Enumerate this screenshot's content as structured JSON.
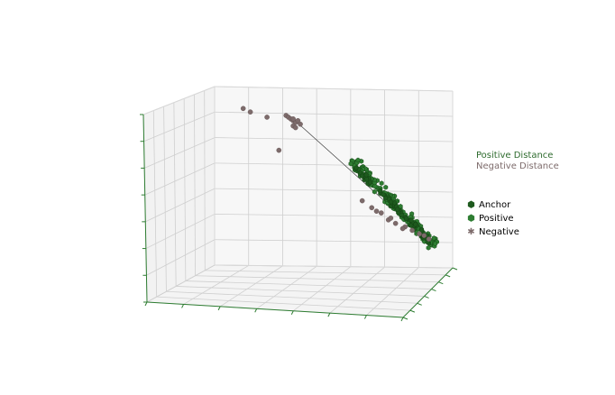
{
  "chart_data": {
    "type": "scatter",
    "projection": "3d",
    "grid": true,
    "colors": {
      "anchor": "#1e5a1e",
      "positive": "#2e7d32",
      "negative": "#7d6b6b",
      "positive_distance_text": "#2e6b2e",
      "negative_distance_text": "#7d6b6b",
      "pane_left": "#f2f2f2",
      "pane_back": "#f7f7f7",
      "pane_floor": "#f4f4f4",
      "grid": "#cfcfcf",
      "axis_ticks": "#2e7d32"
    },
    "distance_legend": {
      "placement": "right",
      "positive_label": "Positive Distance",
      "negative_label": "Negative Distance"
    },
    "legend": {
      "placement": "right",
      "entries": [
        {
          "label": "Anchor",
          "marker": "hexagon",
          "color_key": "anchor"
        },
        {
          "label": "Positive",
          "marker": "hexagon",
          "color_key": "positive"
        },
        {
          "label": "Negative",
          "marker": "star",
          "color_key": "negative"
        }
      ]
    },
    "series": [
      {
        "name": "Negative",
        "marker": "star",
        "points": [
          [
            0.12,
            0.9
          ],
          [
            0.15,
            0.88
          ],
          [
            0.22,
            0.85
          ],
          [
            0.3,
            0.86
          ],
          [
            0.31,
            0.85
          ],
          [
            0.32,
            0.84
          ],
          [
            0.33,
            0.83
          ],
          [
            0.34,
            0.82
          ],
          [
            0.33,
            0.8
          ],
          [
            0.34,
            0.79
          ],
          [
            0.36,
            0.81
          ],
          [
            0.33,
            0.84
          ],
          [
            0.35,
            0.83
          ],
          [
            0.27,
            0.66
          ],
          [
            0.62,
            0.37
          ],
          [
            0.66,
            0.33
          ],
          [
            0.7,
            0.3
          ],
          [
            0.73,
            0.26
          ],
          [
            0.76,
            0.24
          ],
          [
            0.8,
            0.22
          ],
          [
            0.83,
            0.2
          ],
          [
            0.86,
            0.18
          ],
          [
            0.88,
            0.17
          ],
          [
            0.9,
            0.15
          ],
          [
            0.68,
            0.31
          ],
          [
            0.74,
            0.27
          ],
          [
            0.79,
            0.21
          ]
        ]
      },
      {
        "name": "Positive",
        "marker": "hexagon",
        "points": "cluster",
        "cluster": {
          "from": [
            0.58,
            0.6
          ],
          "to": [
            0.92,
            0.12
          ],
          "count": 180,
          "spread": 0.022
        }
      },
      {
        "name": "Anchor",
        "marker": "hexagon",
        "points": "cluster",
        "cluster": {
          "from": [
            0.6,
            0.55
          ],
          "to": [
            0.91,
            0.13
          ],
          "count": 60,
          "spread": 0.012
        }
      }
    ],
    "connector": {
      "from": [
        0.33,
        0.84
      ],
      "to": [
        0.9,
        0.14
      ]
    }
  }
}
